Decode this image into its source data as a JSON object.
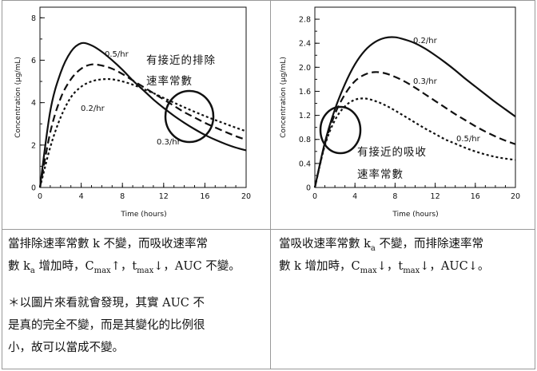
{
  "chart_data": [
    {
      "type": "line",
      "title": "",
      "xlabel": "Time (hours)",
      "ylabel": "Concentration (μg/mL)",
      "xlim": [
        0,
        20
      ],
      "ylim": [
        0,
        8.5
      ],
      "xticks": [
        "0",
        "4",
        "8",
        "12",
        "16",
        "20"
      ],
      "yticks": [
        "0",
        "2",
        "4",
        "6",
        "8"
      ],
      "series": [
        {
          "name": "0.5/hr",
          "style": "solid",
          "x": [
            0,
            1,
            2,
            3,
            4,
            5,
            6,
            7,
            8,
            9,
            10,
            11,
            12,
            13,
            14,
            15,
            16,
            17,
            18,
            19,
            20
          ],
          "values": [
            0,
            3.6,
            5.4,
            6.4,
            6.8,
            6.7,
            6.4,
            6.0,
            5.55,
            5.05,
            4.6,
            4.15,
            3.75,
            3.38,
            3.05,
            2.75,
            2.48,
            2.25,
            2.05,
            1.88,
            1.75
          ]
        },
        {
          "name": "0.3/hr",
          "style": "dashed",
          "x": [
            0,
            1,
            2,
            3,
            4,
            5,
            6,
            7,
            8,
            9,
            10,
            11,
            12,
            13,
            14,
            15,
            16,
            17,
            18,
            19,
            20
          ],
          "values": [
            0,
            2.6,
            4.2,
            5.1,
            5.6,
            5.8,
            5.75,
            5.6,
            5.35,
            5.05,
            4.75,
            4.45,
            4.15,
            3.85,
            3.55,
            3.3,
            3.05,
            2.83,
            2.62,
            2.42,
            2.25
          ]
        },
        {
          "name": "0.2/hr",
          "style": "dotted",
          "x": [
            0,
            1,
            2,
            3,
            4,
            5,
            6,
            7,
            8,
            9,
            10,
            11,
            12,
            13,
            14,
            15,
            16,
            17,
            18,
            19,
            20
          ],
          "values": [
            0,
            1.9,
            3.3,
            4.25,
            4.75,
            5.0,
            5.1,
            5.1,
            5.0,
            4.85,
            4.65,
            4.45,
            4.22,
            4.0,
            3.78,
            3.57,
            3.37,
            3.18,
            3.0,
            2.82,
            2.65
          ]
        }
      ],
      "annotation": "有接近的排除\n速率常數"
    },
    {
      "type": "line",
      "title": "",
      "xlabel": "Time (hours)",
      "ylabel": "Concentration (μg/mL)",
      "xlim": [
        0,
        20
      ],
      "ylim": [
        0,
        3.0
      ],
      "xticks": [
        "0",
        "4",
        "8",
        "12",
        "16",
        "20"
      ],
      "yticks": [
        "0",
        "0.4",
        "0.8",
        "1.2",
        "1.6",
        "2.0",
        "2.4",
        "2.8"
      ],
      "series": [
        {
          "name": "0.2/hr",
          "style": "solid",
          "x": [
            0,
            1,
            2,
            3,
            4,
            5,
            6,
            7,
            8,
            9,
            10,
            11,
            12,
            13,
            14,
            15,
            16,
            17,
            18,
            19,
            20
          ],
          "values": [
            0,
            0.75,
            1.3,
            1.72,
            2.05,
            2.28,
            2.42,
            2.49,
            2.5,
            2.46,
            2.4,
            2.31,
            2.2,
            2.08,
            1.95,
            1.81,
            1.68,
            1.55,
            1.42,
            1.3,
            1.18
          ]
        },
        {
          "name": "0.3/hr",
          "style": "dashed",
          "x": [
            0,
            1,
            2,
            3,
            4,
            5,
            6,
            7,
            8,
            9,
            10,
            11,
            12,
            13,
            14,
            15,
            16,
            17,
            18,
            19,
            20
          ],
          "values": [
            0,
            0.72,
            1.22,
            1.55,
            1.77,
            1.88,
            1.92,
            1.9,
            1.84,
            1.76,
            1.66,
            1.55,
            1.44,
            1.33,
            1.22,
            1.12,
            1.02,
            0.93,
            0.85,
            0.78,
            0.72
          ]
        },
        {
          "name": "0.5/hr",
          "style": "dotted",
          "x": [
            0,
            1,
            2,
            3,
            4,
            5,
            6,
            7,
            8,
            9,
            10,
            11,
            12,
            13,
            14,
            15,
            16,
            17,
            18,
            19,
            20
          ],
          "values": [
            0,
            0.7,
            1.12,
            1.35,
            1.46,
            1.48,
            1.44,
            1.37,
            1.28,
            1.18,
            1.08,
            0.98,
            0.89,
            0.8,
            0.73,
            0.66,
            0.6,
            0.55,
            0.51,
            0.48,
            0.46
          ]
        }
      ],
      "annotation": "有接近的吸收\n速率常數"
    }
  ],
  "cells": {
    "left": {
      "p1_a": "當排除速率常數 k 不變，而吸收速率常",
      "p1_b": "數 k",
      "p1_sub_a": "a",
      "p1_c": " 增加時，C",
      "p1_sub_max1": "max",
      "p1_d": "↑，t",
      "p1_sub_max2": "max",
      "p1_e": "↓，AUC 不變。",
      "p2_a": "＊以圖片來看就會發現，其實 AUC 不",
      "p2_b": "是真的完全不變，而是其變化的比例很",
      "p2_c": "小，故可以當成不變。"
    },
    "right": {
      "p1_a": "當吸收速率常數 k",
      "p1_sub_a": "a",
      "p1_b": " 不變，而排除速率常",
      "p1_c": "數 k 增加時，C",
      "p1_sub_max1": "max",
      "p1_d": "↓，t",
      "p1_sub_max2": "max",
      "p1_e": "↓，AUC↓。"
    }
  }
}
